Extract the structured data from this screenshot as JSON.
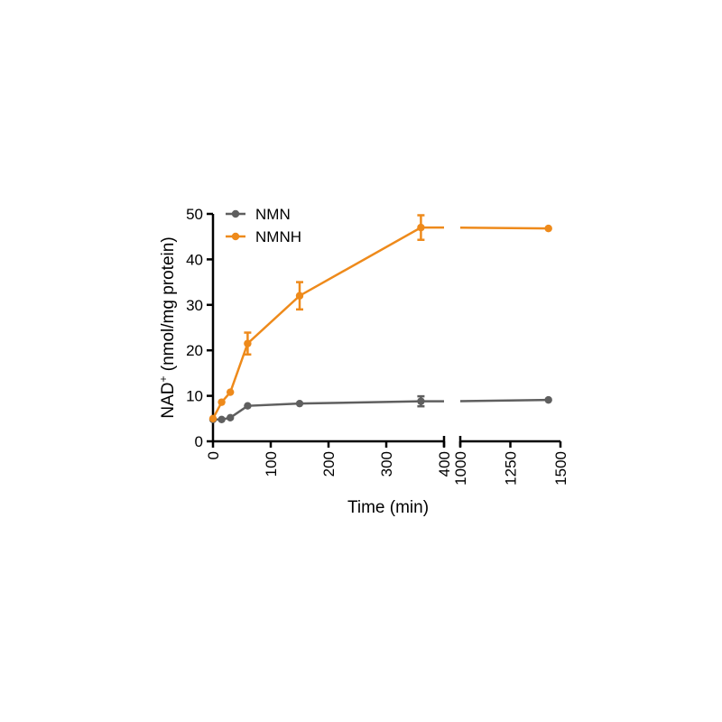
{
  "chart_data": {
    "type": "line",
    "xlabel": "Time (min)",
    "ylabel_main": "NAD",
    "ylabel_sup": "+",
    "ylabel_rest": " (nmol/mg protein)",
    "ylim": [
      0,
      50
    ],
    "yticks": [
      0,
      10,
      20,
      30,
      40,
      50
    ],
    "x_segments": [
      {
        "xlim": [
          0,
          400
        ],
        "ticks": [
          0,
          100,
          200,
          300,
          400
        ]
      },
      {
        "xlim": [
          1000,
          1500
        ],
        "ticks": [
          1000,
          1250,
          1500
        ]
      }
    ],
    "grid": false,
    "legend_position": "top-left",
    "series": [
      {
        "name": "NMN",
        "color": "#5f5f5f",
        "x": [
          0,
          15,
          30,
          60,
          150,
          360,
          1440
        ],
        "y": [
          4.8,
          4.8,
          5.2,
          7.8,
          8.3,
          8.8,
          9.1
        ],
        "err": [
          0,
          0,
          0,
          0,
          0,
          1.1,
          0
        ]
      },
      {
        "name": "NMNH",
        "color": "#ee8a1b",
        "x": [
          0,
          15,
          30,
          60,
          150,
          360,
          1440
        ],
        "y": [
          5.0,
          8.6,
          10.8,
          21.5,
          32.0,
          47.0,
          46.8
        ],
        "err": [
          0,
          0,
          0,
          2.4,
          3.0,
          2.7,
          0
        ]
      }
    ]
  }
}
